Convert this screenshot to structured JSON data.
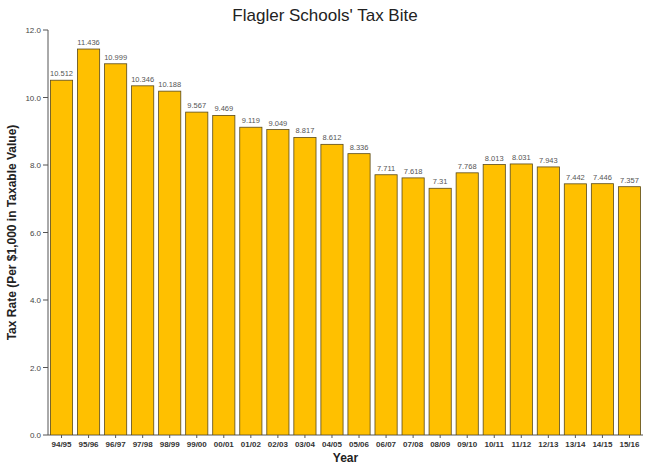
{
  "chart_data": {
    "type": "bar",
    "title": "Flagler Schools' Tax Bite",
    "x_label": "Year",
    "y_label": "Tax Rate (Per $1,000 in Taxable Value)",
    "categories": [
      "94/95",
      "95/96",
      "96/97",
      "97/98",
      "98/99",
      "99/00",
      "00/01",
      "01/02",
      "02/03",
      "03/04",
      "04/05",
      "05/06",
      "06/07",
      "07/08",
      "08/09",
      "09/10",
      "10/11",
      "11/12",
      "12/13",
      "13/14",
      "14/15",
      "15/16"
    ],
    "values": [
      10.512,
      11.436,
      10.999,
      10.346,
      10.188,
      9.567,
      9.469,
      9.119,
      9.049,
      8.817,
      8.612,
      8.336,
      7.711,
      7.618,
      7.31,
      7.768,
      8.013,
      8.031,
      7.943,
      7.442,
      7.446,
      7.357
    ],
    "color": "#ffc000",
    "ylim": [
      0,
      12
    ],
    "yticks": [
      {
        "value": 0,
        "label": "0.0"
      },
      {
        "value": 2,
        "label": "2.0"
      },
      {
        "value": 4,
        "label": "4.0"
      },
      {
        "value": 6,
        "label": "6.0"
      },
      {
        "value": 8,
        "label": "8.0"
      },
      {
        "value": 10,
        "label": "10.0"
      },
      {
        "value": 12,
        "label": "12.0"
      }
    ],
    "grid": false,
    "data_labels": true
  }
}
